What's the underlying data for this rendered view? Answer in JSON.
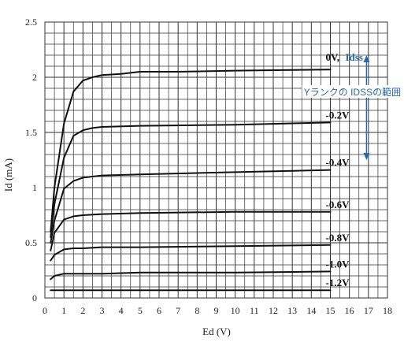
{
  "chart_data": {
    "type": "line",
    "title": "",
    "xlabel": "Ed (V)",
    "ylabel": "Id (mA)",
    "xlim": [
      0,
      18
    ],
    "ylim": [
      0,
      2.5
    ],
    "x_ticks": [
      "0",
      "1",
      "2",
      "3",
      "4",
      "5",
      "6",
      "7",
      "8",
      "9",
      "10",
      "11",
      "12",
      "13",
      "14",
      "15",
      "16",
      "17",
      "18"
    ],
    "y_ticks": [
      "0",
      "0.5",
      "1",
      "1.5",
      "2",
      "2.5"
    ],
    "grid": true,
    "series": [
      {
        "name": "0V, Idss",
        "x": [
          0.3,
          0.5,
          1,
          1.5,
          2,
          2.5,
          3,
          4,
          5,
          7,
          10,
          15
        ],
        "y": [
          0.6,
          1.0,
          1.58,
          1.87,
          1.97,
          2.0,
          2.02,
          2.03,
          2.05,
          2.05,
          2.06,
          2.07
        ]
      },
      {
        "name": "-0.2V",
        "x": [
          0.3,
          0.5,
          1,
          1.5,
          2,
          2.5,
          3,
          5,
          10,
          15
        ],
        "y": [
          0.55,
          0.85,
          1.27,
          1.47,
          1.52,
          1.54,
          1.55,
          1.56,
          1.57,
          1.59
        ]
      },
      {
        "name": "-0.4V",
        "x": [
          0.3,
          0.5,
          1,
          1.5,
          2,
          3,
          5,
          10,
          15
        ],
        "y": [
          0.5,
          0.7,
          0.99,
          1.06,
          1.09,
          1.11,
          1.12,
          1.14,
          1.16
        ]
      },
      {
        "name": "-0.6V",
        "x": [
          0.3,
          0.5,
          1,
          1.5,
          2,
          3,
          5,
          10,
          15
        ],
        "y": [
          0.43,
          0.59,
          0.71,
          0.74,
          0.75,
          0.76,
          0.77,
          0.78,
          0.78
        ]
      },
      {
        "name": "-0.8V",
        "x": [
          0.3,
          0.5,
          1,
          1.5,
          2,
          3,
          5,
          10,
          15
        ],
        "y": [
          0.34,
          0.39,
          0.44,
          0.45,
          0.45,
          0.46,
          0.46,
          0.47,
          0.48
        ]
      },
      {
        "name": "-1.0V",
        "x": [
          0.3,
          0.5,
          1,
          2,
          3,
          5,
          10,
          15
        ],
        "y": [
          0.17,
          0.2,
          0.22,
          0.22,
          0.22,
          0.23,
          0.23,
          0.24
        ]
      },
      {
        "name": "-1.2V",
        "x": [
          0.3,
          1,
          3,
          5,
          10,
          15
        ],
        "y": [
          0.07,
          0.07,
          0.07,
          0.07,
          0.07,
          0.07
        ]
      }
    ],
    "curve_labels": [
      {
        "text": "0V,",
        "x": 15.0,
        "y": 2.07
      },
      {
        "text": "-0.2V",
        "x": 15.0,
        "y": 1.59
      },
      {
        "text": "-0.4V",
        "x": 15.0,
        "y": 1.16
      },
      {
        "text": "-0.6V",
        "x": 15.0,
        "y": 0.78
      },
      {
        "text": "-0.8V",
        "x": 15.0,
        "y": 0.48
      },
      {
        "text": "-1.0V",
        "x": 15.0,
        "y": 0.24
      },
      {
        "text": "-1.2V",
        "x": 15.0,
        "y": 0.07
      }
    ],
    "idss_label": "Idss",
    "annotation": "Yランクの IDSSの範囲",
    "annotation_range": [
      1.25,
      2.2
    ]
  },
  "colors": {
    "curve": "#111111",
    "grid": "#333333",
    "annotation": "#2a6aa8",
    "plot_bg": "#ffffff"
  }
}
